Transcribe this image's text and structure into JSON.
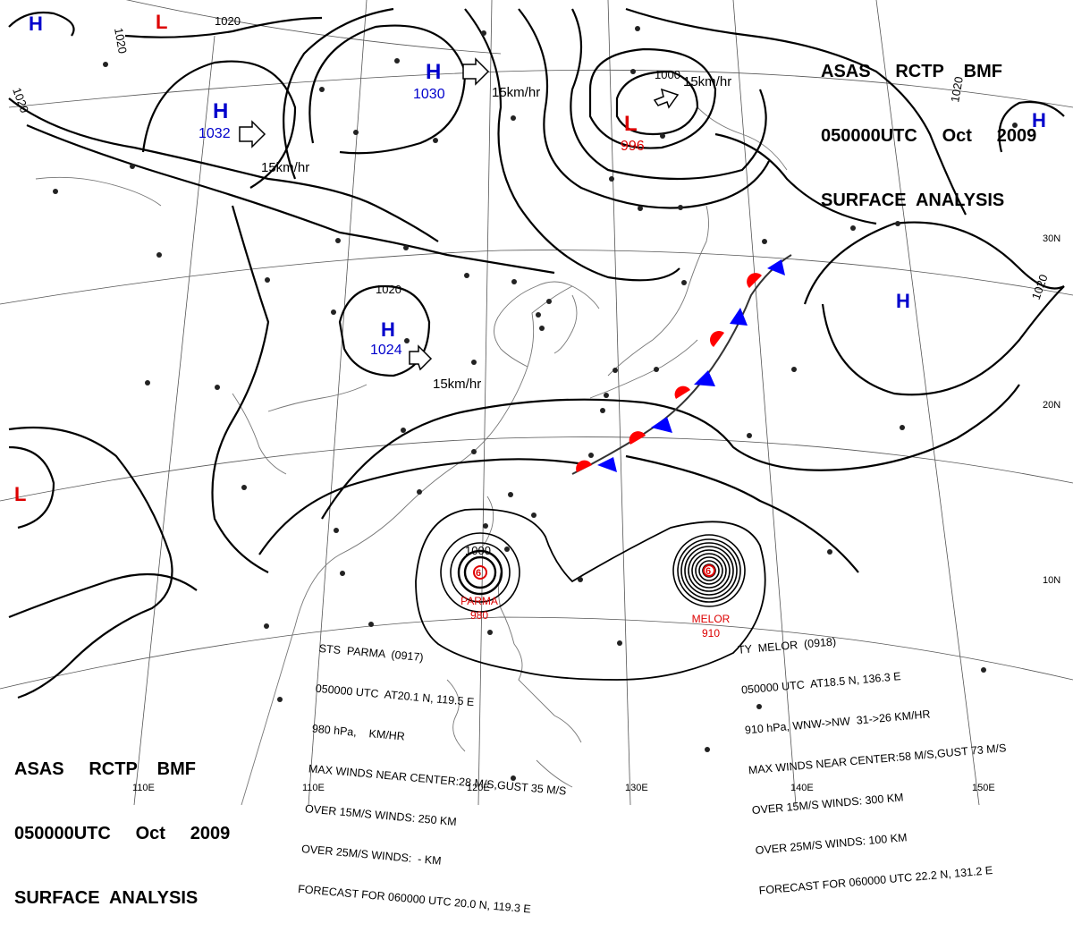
{
  "header": {
    "line1": "ASAS     RCTP    BMF",
    "line2": "050000UTC     Oct     2009",
    "line3": "SURFACE  ANALYSIS"
  },
  "isobar_labels": [
    "1020",
    "1020",
    "1020",
    "1020",
    "1020",
    "1020",
    "1000",
    "1000"
  ],
  "highs": [
    {
      "letter": "H",
      "pressure": "1032"
    },
    {
      "letter": "H",
      "pressure": "1030"
    },
    {
      "letter": "H",
      "pressure": "1024"
    },
    {
      "letter": "H",
      "pressure": ""
    },
    {
      "letter": "H",
      "pressure": ""
    },
    {
      "letter": "H",
      "pressure": ""
    }
  ],
  "lows": [
    {
      "letter": "L",
      "pressure": "996"
    },
    {
      "letter": "L",
      "pressure": ""
    },
    {
      "letter": "L",
      "pressure": ""
    }
  ],
  "motion_labels": [
    "15km/hr",
    "15km/hr",
    "15km/hr",
    "15km/hr"
  ],
  "typhoons": [
    {
      "name": "PARMA",
      "pressure": "980"
    },
    {
      "name": "MELOR",
      "pressure": "910"
    }
  ],
  "parma_info": [
    "STS  PARMA  (0917)",
    "050000 UTC  AT20.1 N, 119.5 E",
    "980 hPa,    KM/HR",
    "MAX WINDS NEAR CENTER:28 M/S,GUST 35 M/S",
    "OVER 15M/S WINDS: 250 KM",
    "OVER 25M/S WINDS:  - KM",
    "FORECAST FOR 060000 UTC 20.0 N, 119.3 E"
  ],
  "melor_info": [
    "TY  MELOR  (0918)",
    "050000 UTC  AT18.5 N, 136.3 E",
    "910 hPa, WNW->NW  31->26 KM/HR",
    "MAX WINDS NEAR CENTER:58 M/S,GUST 73 M/S",
    "OVER 15M/S WINDS: 300 KM",
    "OVER 25M/S WINDS: 100 KM",
    "FORECAST FOR 060000 UTC 22.2 N, 131.2 E"
  ],
  "lon_labels": [
    "110E",
    "120E",
    "130E",
    "140E",
    "150E"
  ],
  "lat_labels": [
    "30N",
    "20N",
    "10N"
  ],
  "colors": {
    "high": "#0000cc",
    "low": "#dd0000",
    "cold_front": "#0000ff",
    "warm_front": "#ff0000",
    "isobar": "#000000",
    "grid": "#666666"
  }
}
